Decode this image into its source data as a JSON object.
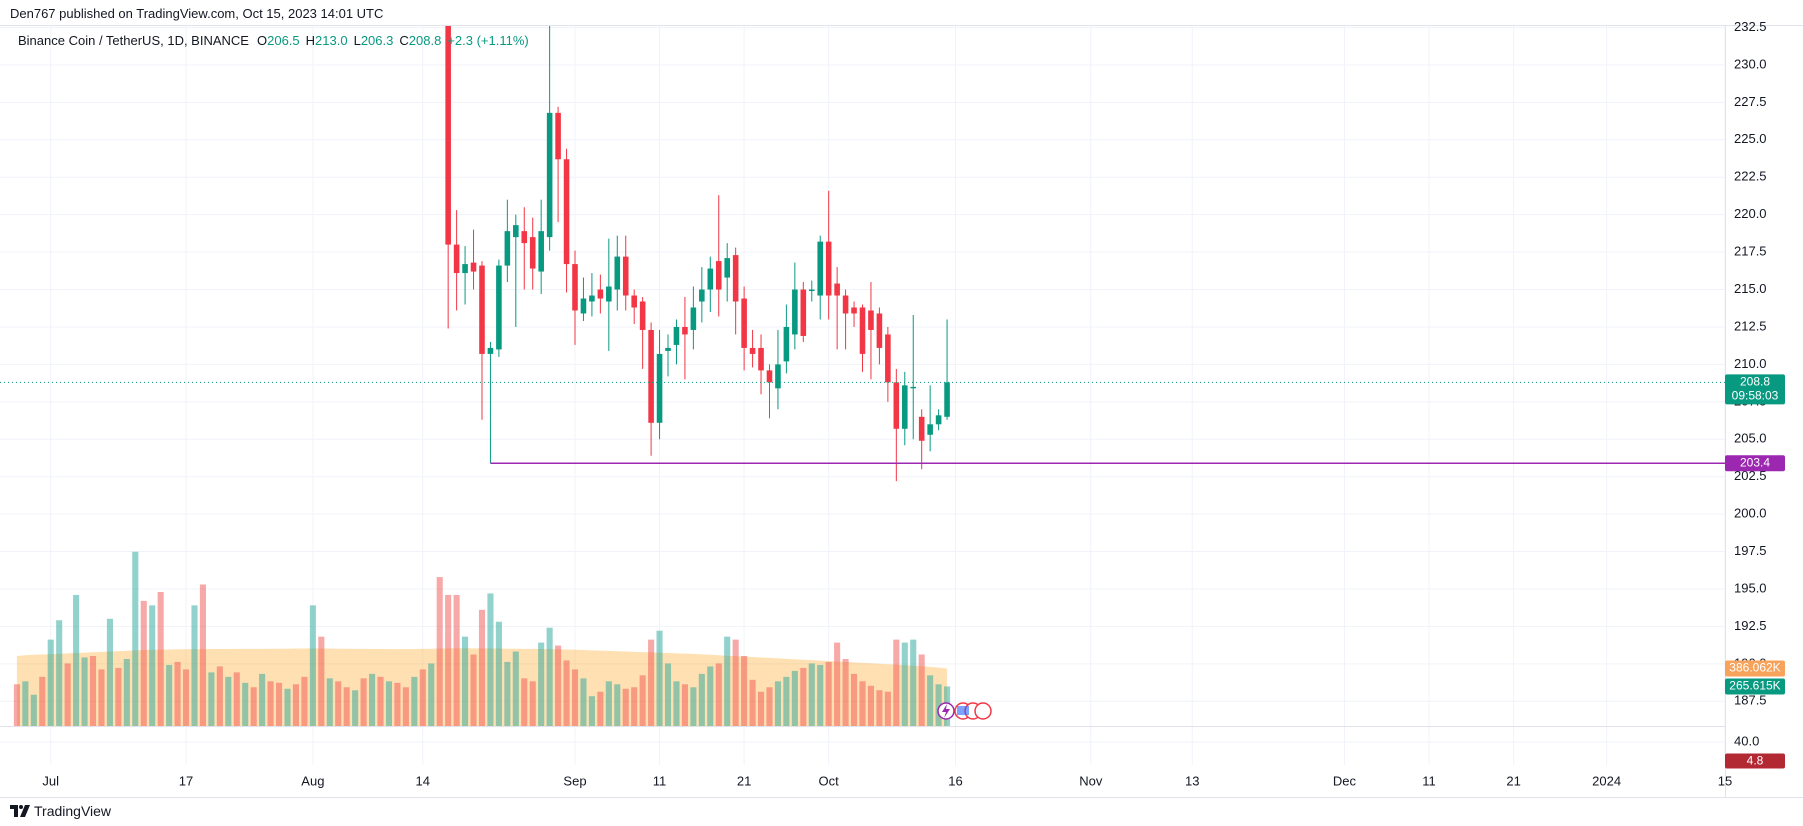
{
  "header": {
    "published": "Den767 published on TradingView.com, Oct 15, 2023 14:01 UTC"
  },
  "chart_data": {
    "type": "candlestick",
    "title": "Binance Coin / TetherUS, 1D, BINANCE",
    "legend": [
      {
        "key": "O",
        "text": "206.5"
      },
      {
        "key": "H",
        "text": "213.0"
      },
      {
        "key": "L",
        "text": "206.3"
      },
      {
        "key": "C",
        "text": "208.8"
      }
    ],
    "change": "+2.3 (+1.11%)",
    "x": [
      "2023-06-27",
      "2023-06-28",
      "2023-06-29",
      "2023-06-30",
      "2023-07-01",
      "2023-07-02",
      "2023-07-03",
      "2023-07-04",
      "2023-07-05",
      "2023-07-06",
      "2023-07-07",
      "2023-07-08",
      "2023-07-09",
      "2023-07-10",
      "2023-07-11",
      "2023-07-12",
      "2023-07-13",
      "2023-07-14",
      "2023-07-15",
      "2023-07-16",
      "2023-07-17",
      "2023-07-18",
      "2023-07-19",
      "2023-07-20",
      "2023-07-21",
      "2023-07-22",
      "2023-07-23",
      "2023-07-24",
      "2023-07-25",
      "2023-07-26",
      "2023-07-27",
      "2023-07-28",
      "2023-07-29",
      "2023-07-30",
      "2023-07-31",
      "2023-08-01",
      "2023-08-02",
      "2023-08-03",
      "2023-08-04",
      "2023-08-05",
      "2023-08-06",
      "2023-08-07",
      "2023-08-08",
      "2023-08-09",
      "2023-08-10",
      "2023-08-11",
      "2023-08-12",
      "2023-08-13",
      "2023-08-14",
      "2023-08-15",
      "2023-08-16",
      "2023-08-17",
      "2023-08-18",
      "2023-08-19",
      "2023-08-20",
      "2023-08-21",
      "2023-08-22",
      "2023-08-23",
      "2023-08-24",
      "2023-08-25",
      "2023-08-26",
      "2023-08-27",
      "2023-08-28",
      "2023-08-29",
      "2023-08-30",
      "2023-08-31",
      "2023-09-01",
      "2023-09-02",
      "2023-09-03",
      "2023-09-04",
      "2023-09-05",
      "2023-09-06",
      "2023-09-07",
      "2023-09-08",
      "2023-09-09",
      "2023-09-10",
      "2023-09-11",
      "2023-09-12",
      "2023-09-13",
      "2023-09-14",
      "2023-09-15",
      "2023-09-16",
      "2023-09-17",
      "2023-09-18",
      "2023-09-19",
      "2023-09-20",
      "2023-09-21",
      "2023-09-22",
      "2023-09-23",
      "2023-09-24",
      "2023-09-25",
      "2023-09-26",
      "2023-09-27",
      "2023-09-28",
      "2023-09-29",
      "2023-09-30",
      "2023-10-01",
      "2023-10-02",
      "2023-10-03",
      "2023-10-04",
      "2023-10-05",
      "2023-10-06",
      "2023-10-07",
      "2023-10-08",
      "2023-10-09",
      "2023-10-10",
      "2023-10-11",
      "2023-10-12",
      "2023-10-13",
      "2023-10-14",
      "2023-10-15"
    ],
    "open": [
      null,
      null,
      null,
      null,
      null,
      null,
      null,
      null,
      null,
      null,
      null,
      null,
      null,
      null,
      null,
      null,
      null,
      null,
      null,
      null,
      null,
      null,
      null,
      null,
      null,
      null,
      null,
      null,
      null,
      null,
      null,
      null,
      null,
      null,
      null,
      null,
      null,
      null,
      null,
      null,
      null,
      null,
      null,
      null,
      null,
      null,
      null,
      null,
      null,
      null,
      null,
      233.5,
      218,
      216.1,
      216.8,
      216.6,
      210.7,
      211,
      216.6,
      218.5,
      218.9,
      218.5,
      216.2,
      218.5,
      226.8,
      223.7,
      216.7,
      213.4,
      214.2,
      215,
      214.2,
      215,
      217.2,
      214.6,
      214.2,
      212.3,
      206.1,
      210.9,
      211.3,
      212.5,
      212.3,
      214.2,
      215,
      216.9,
      215.8,
      217.3,
      214.4,
      211.1,
      211.1,
      209.6,
      208.4,
      210.2,
      212,
      215,
      214.9,
      214.6,
      218.2,
      215.4,
      214.6,
      213.8,
      213.8,
      213.6,
      213.4,
      212,
      208.8,
      205.7,
      208.4,
      206.5,
      205.3,
      206,
      206.5
    ],
    "high": [
      null,
      null,
      null,
      null,
      null,
      null,
      null,
      null,
      null,
      null,
      null,
      null,
      null,
      null,
      null,
      null,
      null,
      null,
      null,
      null,
      null,
      null,
      null,
      null,
      null,
      null,
      null,
      null,
      null,
      null,
      null,
      null,
      null,
      null,
      null,
      null,
      null,
      null,
      null,
      null,
      null,
      null,
      null,
      null,
      null,
      null,
      null,
      null,
      null,
      null,
      null,
      234,
      220.3,
      217.9,
      219,
      216.9,
      211.5,
      217,
      221,
      220,
      220.5,
      219.8,
      221,
      233,
      227.2,
      224.4,
      217.6,
      215.8,
      216.1,
      216,
      218.4,
      218.6,
      218.6,
      215,
      214.5,
      212.8,
      212.3,
      212,
      213,
      214.5,
      215.2,
      216.5,
      217.2,
      221.3,
      218.1,
      217.8,
      215.2,
      212.3,
      212,
      210,
      212.3,
      214,
      216.8,
      215.5,
      215.6,
      218.6,
      221.6,
      216.5,
      215,
      214.2,
      214,
      215.5,
      213.8,
      212.5,
      209.7,
      209.5,
      213.3,
      207,
      208.6,
      207,
      213
    ],
    "low": [
      null,
      null,
      null,
      null,
      null,
      null,
      null,
      null,
      null,
      null,
      null,
      null,
      null,
      null,
      null,
      null,
      null,
      null,
      null,
      null,
      null,
      null,
      null,
      null,
      null,
      null,
      null,
      null,
      null,
      null,
      null,
      null,
      null,
      null,
      null,
      null,
      null,
      null,
      null,
      null,
      null,
      null,
      null,
      null,
      null,
      null,
      null,
      null,
      null,
      null,
      null,
      212.4,
      213.6,
      214,
      215,
      206.3,
      203.4,
      210.5,
      215.5,
      212.5,
      215,
      215,
      214.7,
      217.6,
      219.5,
      214.8,
      211.3,
      212.9,
      213.2,
      213.4,
      210.9,
      213.6,
      213.6,
      212.7,
      209.7,
      203.9,
      205,
      209.2,
      210,
      209,
      211,
      212.8,
      213.5,
      213.2,
      214.2,
      212,
      209.6,
      209.8,
      208,
      206.4,
      207,
      209.4,
      211,
      211.5,
      214.2,
      213,
      213,
      211,
      211,
      212.5,
      209.5,
      209,
      210,
      207.5,
      202.2,
      204.6,
      205,
      203,
      204.2,
      205.6,
      206.3
    ],
    "close": [
      null,
      null,
      null,
      null,
      null,
      null,
      null,
      null,
      null,
      null,
      null,
      null,
      null,
      null,
      null,
      null,
      null,
      null,
      null,
      null,
      null,
      null,
      null,
      null,
      null,
      null,
      null,
      null,
      null,
      null,
      null,
      null,
      null,
      null,
      null,
      null,
      null,
      null,
      null,
      null,
      null,
      null,
      null,
      null,
      null,
      null,
      null,
      null,
      null,
      null,
      null,
      218,
      216.1,
      216.7,
      216.2,
      210.7,
      211.1,
      216.6,
      218.9,
      219.3,
      218.1,
      216.4,
      218.9,
      226.8,
      223.7,
      216.7,
      213.6,
      214.4,
      214.6,
      214.4,
      215.2,
      217.2,
      214.6,
      213.8,
      212.3,
      206.1,
      210.7,
      211.1,
      212.5,
      212,
      213.8,
      215,
      216.4,
      215,
      217.1,
      214.2,
      211.1,
      210.7,
      209.6,
      208.8,
      210,
      212.5,
      215,
      211.9,
      215,
      218.2,
      214.6,
      214.6,
      213.4,
      213.4,
      210.7,
      212.3,
      211.1,
      208.8,
      205.7,
      208.6,
      208.5,
      204.9,
      206,
      206.6,
      208.8
    ],
    "up_color": "#089981",
    "down_color": "#f23645",
    "xlim": [
      "2023-06-25",
      "2024-01-15"
    ],
    "xticks": [
      {
        "value": "2023-07-01",
        "label": "Jul"
      },
      {
        "value": "2023-07-17",
        "label": "17"
      },
      {
        "value": "2023-08-01",
        "label": "Aug"
      },
      {
        "value": "2023-08-14",
        "label": "14"
      },
      {
        "value": "2023-09-01",
        "label": "Sep"
      },
      {
        "value": "2023-09-11",
        "label": "11"
      },
      {
        "value": "2023-09-21",
        "label": "21"
      },
      {
        "value": "2023-10-01",
        "label": "Oct"
      },
      {
        "value": "2023-10-16",
        "label": "16"
      },
      {
        "value": "2023-11-01",
        "label": "Nov"
      },
      {
        "value": "2023-11-13",
        "label": "13"
      },
      {
        "value": "2023-12-01",
        "label": "Dec"
      },
      {
        "value": "2023-12-11",
        "label": "11"
      },
      {
        "value": "2023-12-21",
        "label": "21"
      },
      {
        "value": "2024-01-01",
        "label": "2024"
      },
      {
        "value": "2024-01-15",
        "label": "15"
      }
    ],
    "ylim": [
      185.85,
      232.6
    ],
    "yticks": [
      187.5,
      {
        "value": 190,
        "label": "190.0"
      },
      192.5,
      {
        "value": 195,
        "label": "195.0"
      },
      197.5,
      {
        "value": 200,
        "label": "200.0"
      },
      202.5,
      {
        "value": 205,
        "label": "205.0"
      },
      207.5,
      {
        "value": 210,
        "label": "210.0"
      },
      212.5,
      {
        "value": 215,
        "label": "215.0"
      },
      217.5,
      {
        "value": 220,
        "label": "220.0"
      },
      222.5,
      {
        "value": 225,
        "label": "225.0"
      },
      227.5,
      {
        "value": 230,
        "label": "230.0"
      },
      232.5
    ],
    "grid": true,
    "countdown": "09:58:03",
    "horizontal_ray": {
      "x": "2023-08-22",
      "y": 203.4,
      "color": "#9c27b0"
    },
    "volume": {
      "values": [
        280,
        300,
        210,
        330,
        580,
        710,
        420,
        880,
        460,
        470,
        380,
        720,
        390,
        450,
        1170,
        840,
        810,
        900,
        410,
        430,
        380,
        810,
        950,
        360,
        400,
        330,
        360,
        290,
        260,
        350,
        300,
        290,
        250,
        280,
        330,
        810,
        600,
        320,
        300,
        260,
        240,
        320,
        350,
        330,
        300,
        290,
        260,
        330,
        380,
        420,
        1000,
        880,
        880,
        600,
        480,
        780,
        890,
        700,
        430,
        500,
        320,
        300,
        560,
        660,
        540,
        440,
        380,
        320,
        200,
        230,
        300,
        280,
        250,
        260,
        340,
        580,
        640,
        420,
        300,
        280,
        260,
        350,
        400,
        420,
        600,
        580,
        470,
        310,
        230,
        260,
        300,
        330,
        370,
        390,
        420,
        410,
        430,
        560,
        450,
        350,
        300,
        270,
        240,
        230,
        580,
        560,
        580,
        480,
        340,
        280,
        265.615
      ],
      "rising": [
        false,
        true,
        true,
        false,
        true,
        true,
        false,
        true,
        true,
        false,
        false,
        true,
        false,
        true,
        true,
        false,
        true,
        false,
        true,
        false,
        false,
        true,
        false,
        true,
        false,
        true,
        false,
        true,
        false,
        true,
        false,
        false,
        true,
        false,
        false,
        true,
        false,
        true,
        false,
        false,
        true,
        false,
        true,
        false,
        true,
        false,
        false,
        true,
        false,
        true,
        false,
        false,
        false,
        true,
        false,
        false,
        true,
        true,
        true,
        true,
        false,
        false,
        true,
        true,
        false,
        false,
        false,
        true,
        true,
        false,
        true,
        true,
        false,
        false,
        false,
        false,
        true,
        true,
        true,
        false,
        true,
        true,
        true,
        false,
        true,
        false,
        false,
        false,
        false,
        false,
        true,
        true,
        true,
        false,
        true,
        true,
        false,
        false,
        false,
        false,
        false,
        false,
        false,
        false,
        false,
        true,
        true,
        false,
        true,
        true,
        true
      ],
      "last_value_label": "265.615K",
      "ma": [
        470,
        475,
        478,
        480,
        482,
        485,
        488,
        490,
        493,
        495,
        498,
        500,
        503,
        505,
        508,
        510,
        512,
        513,
        514,
        515,
        515,
        516,
        516,
        517,
        517,
        517,
        518,
        518,
        518,
        518,
        519,
        519,
        519,
        520,
        520,
        520,
        520,
        520,
        519,
        519,
        518,
        518,
        517,
        517,
        516,
        516,
        516,
        517,
        518,
        519,
        520,
        521,
        522,
        522,
        521,
        521,
        520,
        520,
        519,
        519,
        518,
        518,
        517,
        516,
        515,
        514,
        512,
        510,
        508,
        506,
        504,
        502,
        500,
        498,
        496,
        494,
        492,
        490,
        488,
        486,
        484,
        481,
        478,
        475,
        472,
        469,
        466,
        463,
        460,
        457,
        454,
        451,
        448,
        445,
        442,
        439,
        436,
        433,
        430,
        427,
        424,
        421,
        418,
        415,
        412,
        409,
        405,
        401,
        397,
        392,
        386.062
      ],
      "ma_last_value_label": "386.062K",
      "ylim": [
        0,
        4700
      ],
      "up_color": "rgba(38,166,154,0.5)",
      "down_color": "rgba(239,83,80,0.5)",
      "ma_color": "#ff9800",
      "ma_badge_color": "#f7a35c"
    },
    "indicator": {
      "ylim": [
        -2.6,
        67.8
      ],
      "yticks": [
        {
          "value": 40,
          "label": "40.0"
        }
      ],
      "last_value": 4.8,
      "color": "#b22833"
    }
  },
  "footer": {
    "brand": "TradingView"
  }
}
